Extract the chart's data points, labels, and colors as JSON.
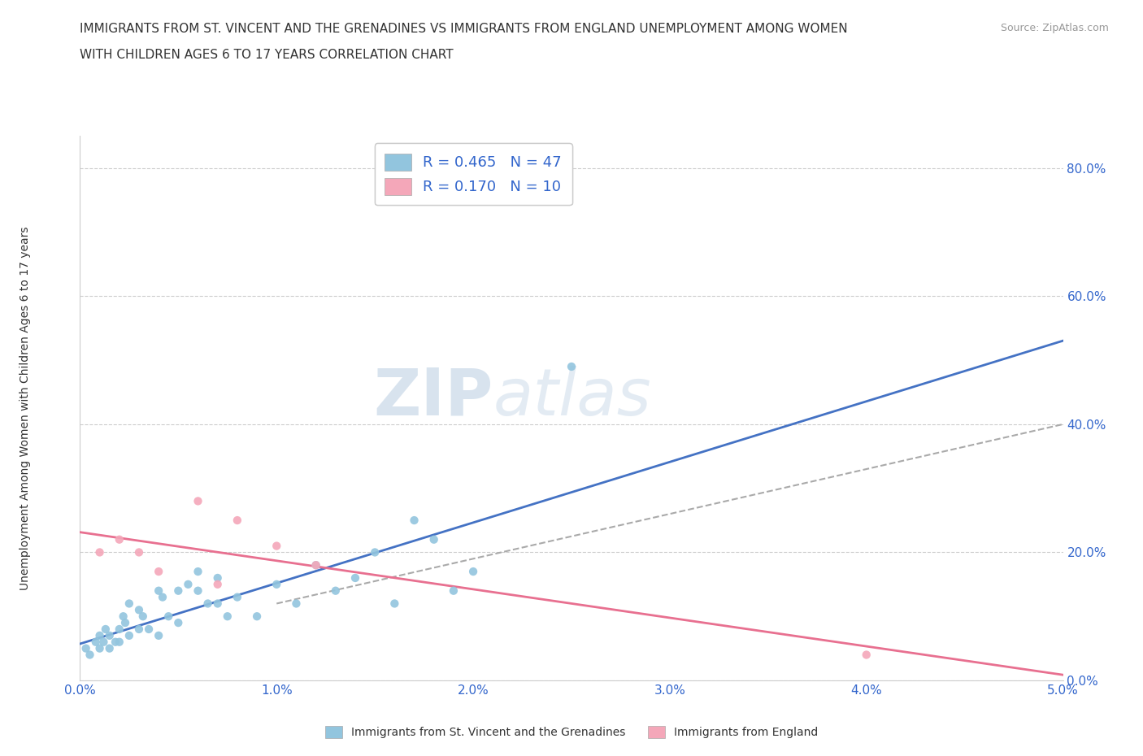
{
  "title_line1": "IMMIGRANTS FROM ST. VINCENT AND THE GRENADINES VS IMMIGRANTS FROM ENGLAND UNEMPLOYMENT AMONG WOMEN",
  "title_line2": "WITH CHILDREN AGES 6 TO 17 YEARS CORRELATION CHART",
  "source": "Source: ZipAtlas.com",
  "ylabel": "Unemployment Among Women with Children Ages 6 to 17 years",
  "xlim": [
    0.0,
    0.05
  ],
  "ylim": [
    0.0,
    0.85
  ],
  "xticks": [
    0.0,
    0.01,
    0.02,
    0.03,
    0.04,
    0.05
  ],
  "yticks": [
    0.0,
    0.2,
    0.4,
    0.6,
    0.8
  ],
  "xtick_labels": [
    "0.0%",
    "1.0%",
    "2.0%",
    "3.0%",
    "4.0%",
    "5.0%"
  ],
  "ytick_labels": [
    "0.0%",
    "20.0%",
    "40.0%",
    "60.0%",
    "80.0%"
  ],
  "r_blue": 0.465,
  "n_blue": 47,
  "r_pink": 0.17,
  "n_pink": 10,
  "color_blue": "#92C5DE",
  "color_pink": "#F4A7B9",
  "trend_blue_color": "#4472C4",
  "trend_blue_dash_color": "#AAAAAA",
  "trend_pink_color": "#E87090",
  "legend_label_blue": "Immigrants from St. Vincent and the Grenadines",
  "legend_label_pink": "Immigrants from England",
  "watermark_zip": "ZIP",
  "watermark_atlas": "atlas",
  "blue_scatter_x": [
    0.0003,
    0.0005,
    0.0008,
    0.001,
    0.001,
    0.0012,
    0.0013,
    0.0015,
    0.0015,
    0.0018,
    0.002,
    0.002,
    0.0022,
    0.0023,
    0.0025,
    0.0025,
    0.003,
    0.003,
    0.0032,
    0.0035,
    0.004,
    0.004,
    0.0042,
    0.0045,
    0.005,
    0.005,
    0.0055,
    0.006,
    0.006,
    0.0065,
    0.007,
    0.007,
    0.0075,
    0.008,
    0.009,
    0.01,
    0.011,
    0.012,
    0.013,
    0.014,
    0.015,
    0.016,
    0.017,
    0.018,
    0.019,
    0.02,
    0.025
  ],
  "blue_scatter_y": [
    0.05,
    0.04,
    0.06,
    0.05,
    0.07,
    0.06,
    0.08,
    0.07,
    0.05,
    0.06,
    0.06,
    0.08,
    0.1,
    0.09,
    0.07,
    0.12,
    0.08,
    0.11,
    0.1,
    0.08,
    0.07,
    0.14,
    0.13,
    0.1,
    0.09,
    0.14,
    0.15,
    0.14,
    0.17,
    0.12,
    0.12,
    0.16,
    0.1,
    0.13,
    0.1,
    0.15,
    0.12,
    0.18,
    0.14,
    0.16,
    0.2,
    0.12,
    0.25,
    0.22,
    0.14,
    0.17,
    0.49
  ],
  "pink_scatter_x": [
    0.001,
    0.002,
    0.003,
    0.004,
    0.006,
    0.007,
    0.008,
    0.01,
    0.012,
    0.04
  ],
  "pink_scatter_y": [
    0.2,
    0.22,
    0.2,
    0.17,
    0.28,
    0.15,
    0.25,
    0.21,
    0.18,
    0.04
  ]
}
